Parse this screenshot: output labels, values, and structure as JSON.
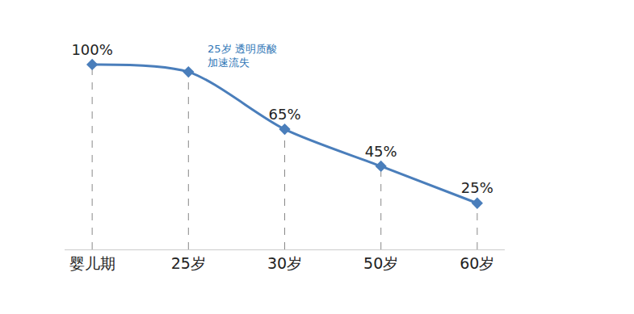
{
  "chart_data": {
    "type": "line",
    "categories": [
      "婴儿期",
      "25岁",
      "30岁",
      "50岁",
      "60岁"
    ],
    "values": [
      100,
      96,
      65,
      45,
      25
    ],
    "value_labels": [
      "100%",
      null,
      "65%",
      "45%",
      "25%"
    ],
    "data_labels": true,
    "color": "#4a7ebb",
    "marker": "diamond",
    "line_style": "solid",
    "ylim": [
      0,
      110
    ],
    "tick_labels": "x",
    "annotations": [
      {
        "category": "25岁",
        "value": 96,
        "text": "25岁 透明质酸\n加速流失",
        "color": "#2e75b6"
      }
    ]
  }
}
